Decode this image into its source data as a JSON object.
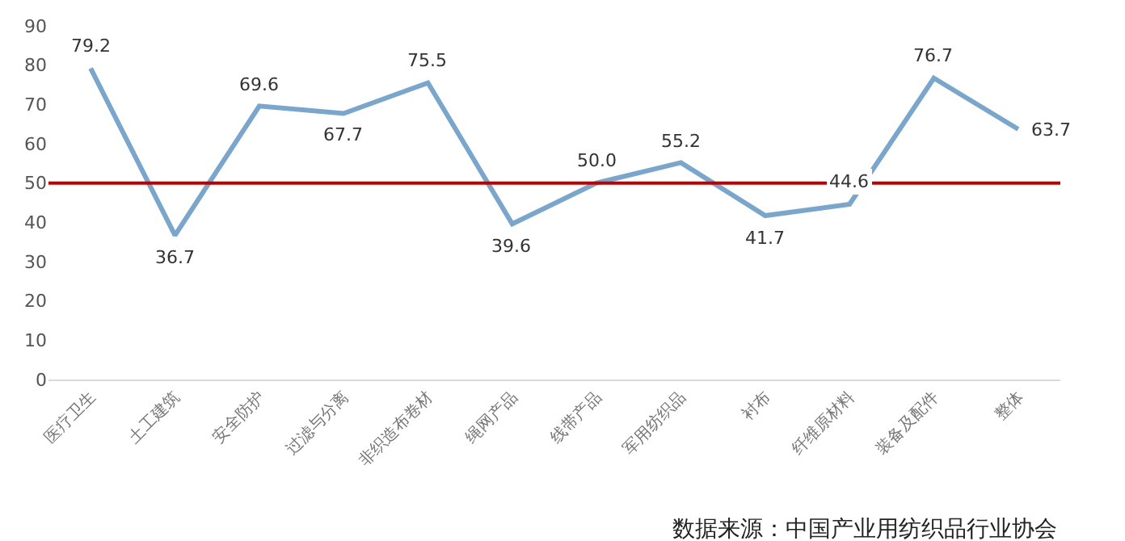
{
  "chart_data": {
    "type": "line",
    "categories": [
      "医疗卫生",
      "土工建筑",
      "安全防护",
      "过滤与分离",
      "非织造布卷材",
      "绳网产品",
      "线带产品",
      "军用纺织品",
      "衬布",
      "纤维原材料",
      "装备及配件",
      "整体"
    ],
    "series": [
      {
        "color": "#7aa6cc",
        "values": [
          79.2,
          36.7,
          69.6,
          67.7,
          75.5,
          39.6,
          50.0,
          55.2,
          41.7,
          44.6,
          76.7,
          63.7
        ],
        "value_labels": [
          "79.2",
          "36.7",
          "69.6",
          "67.7",
          "75.5",
          "39.6",
          "50.0",
          "55.2",
          "41.7",
          "44.6",
          "76.7",
          "63.7"
        ]
      }
    ],
    "ylim": [
      0,
      90
    ],
    "yticks": [
      0,
      10,
      20,
      30,
      40,
      50,
      60,
      70,
      80,
      90
    ],
    "ref_lines": [
      {
        "axis": "y",
        "value": 50,
        "color": "#c00000"
      }
    ],
    "annotations": [
      "数据来源：中国产业用纺织品行业协会"
    ],
    "marker": "none",
    "line_style": "solid"
  }
}
